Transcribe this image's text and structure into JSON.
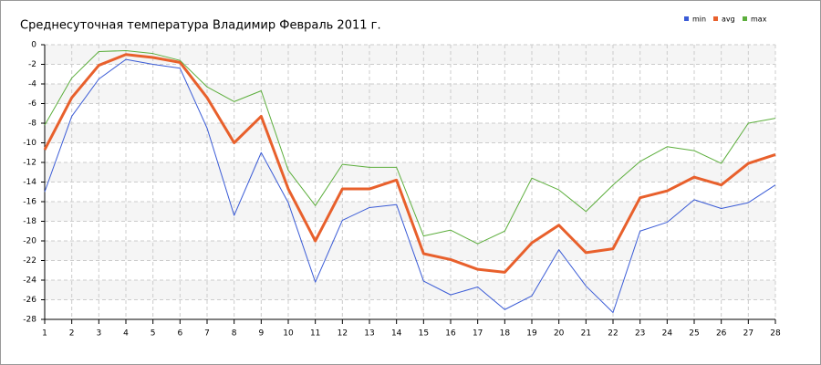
{
  "chart_data": {
    "type": "line",
    "title": "Среднесуточная температура Владимир  Февраль 2011 г.",
    "x": [
      1,
      2,
      3,
      4,
      5,
      6,
      7,
      8,
      9,
      10,
      11,
      12,
      13,
      14,
      15,
      16,
      17,
      18,
      19,
      20,
      21,
      22,
      23,
      24,
      25,
      26,
      27,
      28
    ],
    "xlim": [
      1,
      28
    ],
    "xticks": [
      1,
      2,
      3,
      4,
      5,
      6,
      7,
      8,
      9,
      10,
      11,
      12,
      13,
      14,
      15,
      16,
      17,
      18,
      19,
      20,
      21,
      22,
      23,
      24,
      25,
      26,
      27,
      28
    ],
    "ylim": [
      -28,
      0
    ],
    "yticks": [
      0,
      -2,
      -4,
      -6,
      -8,
      -10,
      -12,
      -14,
      -16,
      -18,
      -20,
      -22,
      -24,
      -26,
      -28
    ],
    "grid": true,
    "legend": "top-right",
    "series": [
      {
        "name": "min",
        "color": "#3a5bd6",
        "width": 1,
        "values": [
          -15.0,
          -7.3,
          -3.5,
          -1.5,
          -2.0,
          -2.4,
          -8.5,
          -17.4,
          -11.0,
          -16.1,
          -24.2,
          -17.9,
          -16.6,
          -16.3,
          -24.1,
          -25.5,
          -24.7,
          -27.0,
          -25.6,
          -20.9,
          -24.6,
          -27.3,
          -19.0,
          -18.1,
          -15.8,
          -16.7,
          -16.1,
          -14.3
        ]
      },
      {
        "name": "avg",
        "color": "#e8602c",
        "width": 3,
        "values": [
          -10.7,
          -5.4,
          -2.1,
          -1.0,
          -1.3,
          -1.8,
          -5.4,
          -10.0,
          -7.3,
          -14.7,
          -20.0,
          -14.7,
          -14.7,
          -13.8,
          -21.3,
          -21.9,
          -22.9,
          -23.2,
          -20.2,
          -18.4,
          -21.2,
          -20.8,
          -15.6,
          -14.9,
          -13.5,
          -14.3,
          -12.1,
          -11.2
        ]
      },
      {
        "name": "max",
        "color": "#5cae3c",
        "width": 1,
        "values": [
          -8.2,
          -3.4,
          -0.7,
          -0.6,
          -0.9,
          -1.6,
          -4.3,
          -5.8,
          -4.7,
          -12.8,
          -16.4,
          -12.2,
          -12.5,
          -12.5,
          -19.5,
          -18.9,
          -20.3,
          -19.0,
          -13.6,
          -14.8,
          -17.0,
          -14.3,
          -11.9,
          -10.4,
          -10.8,
          -12.1,
          -8.0,
          -7.5
        ]
      }
    ]
  }
}
